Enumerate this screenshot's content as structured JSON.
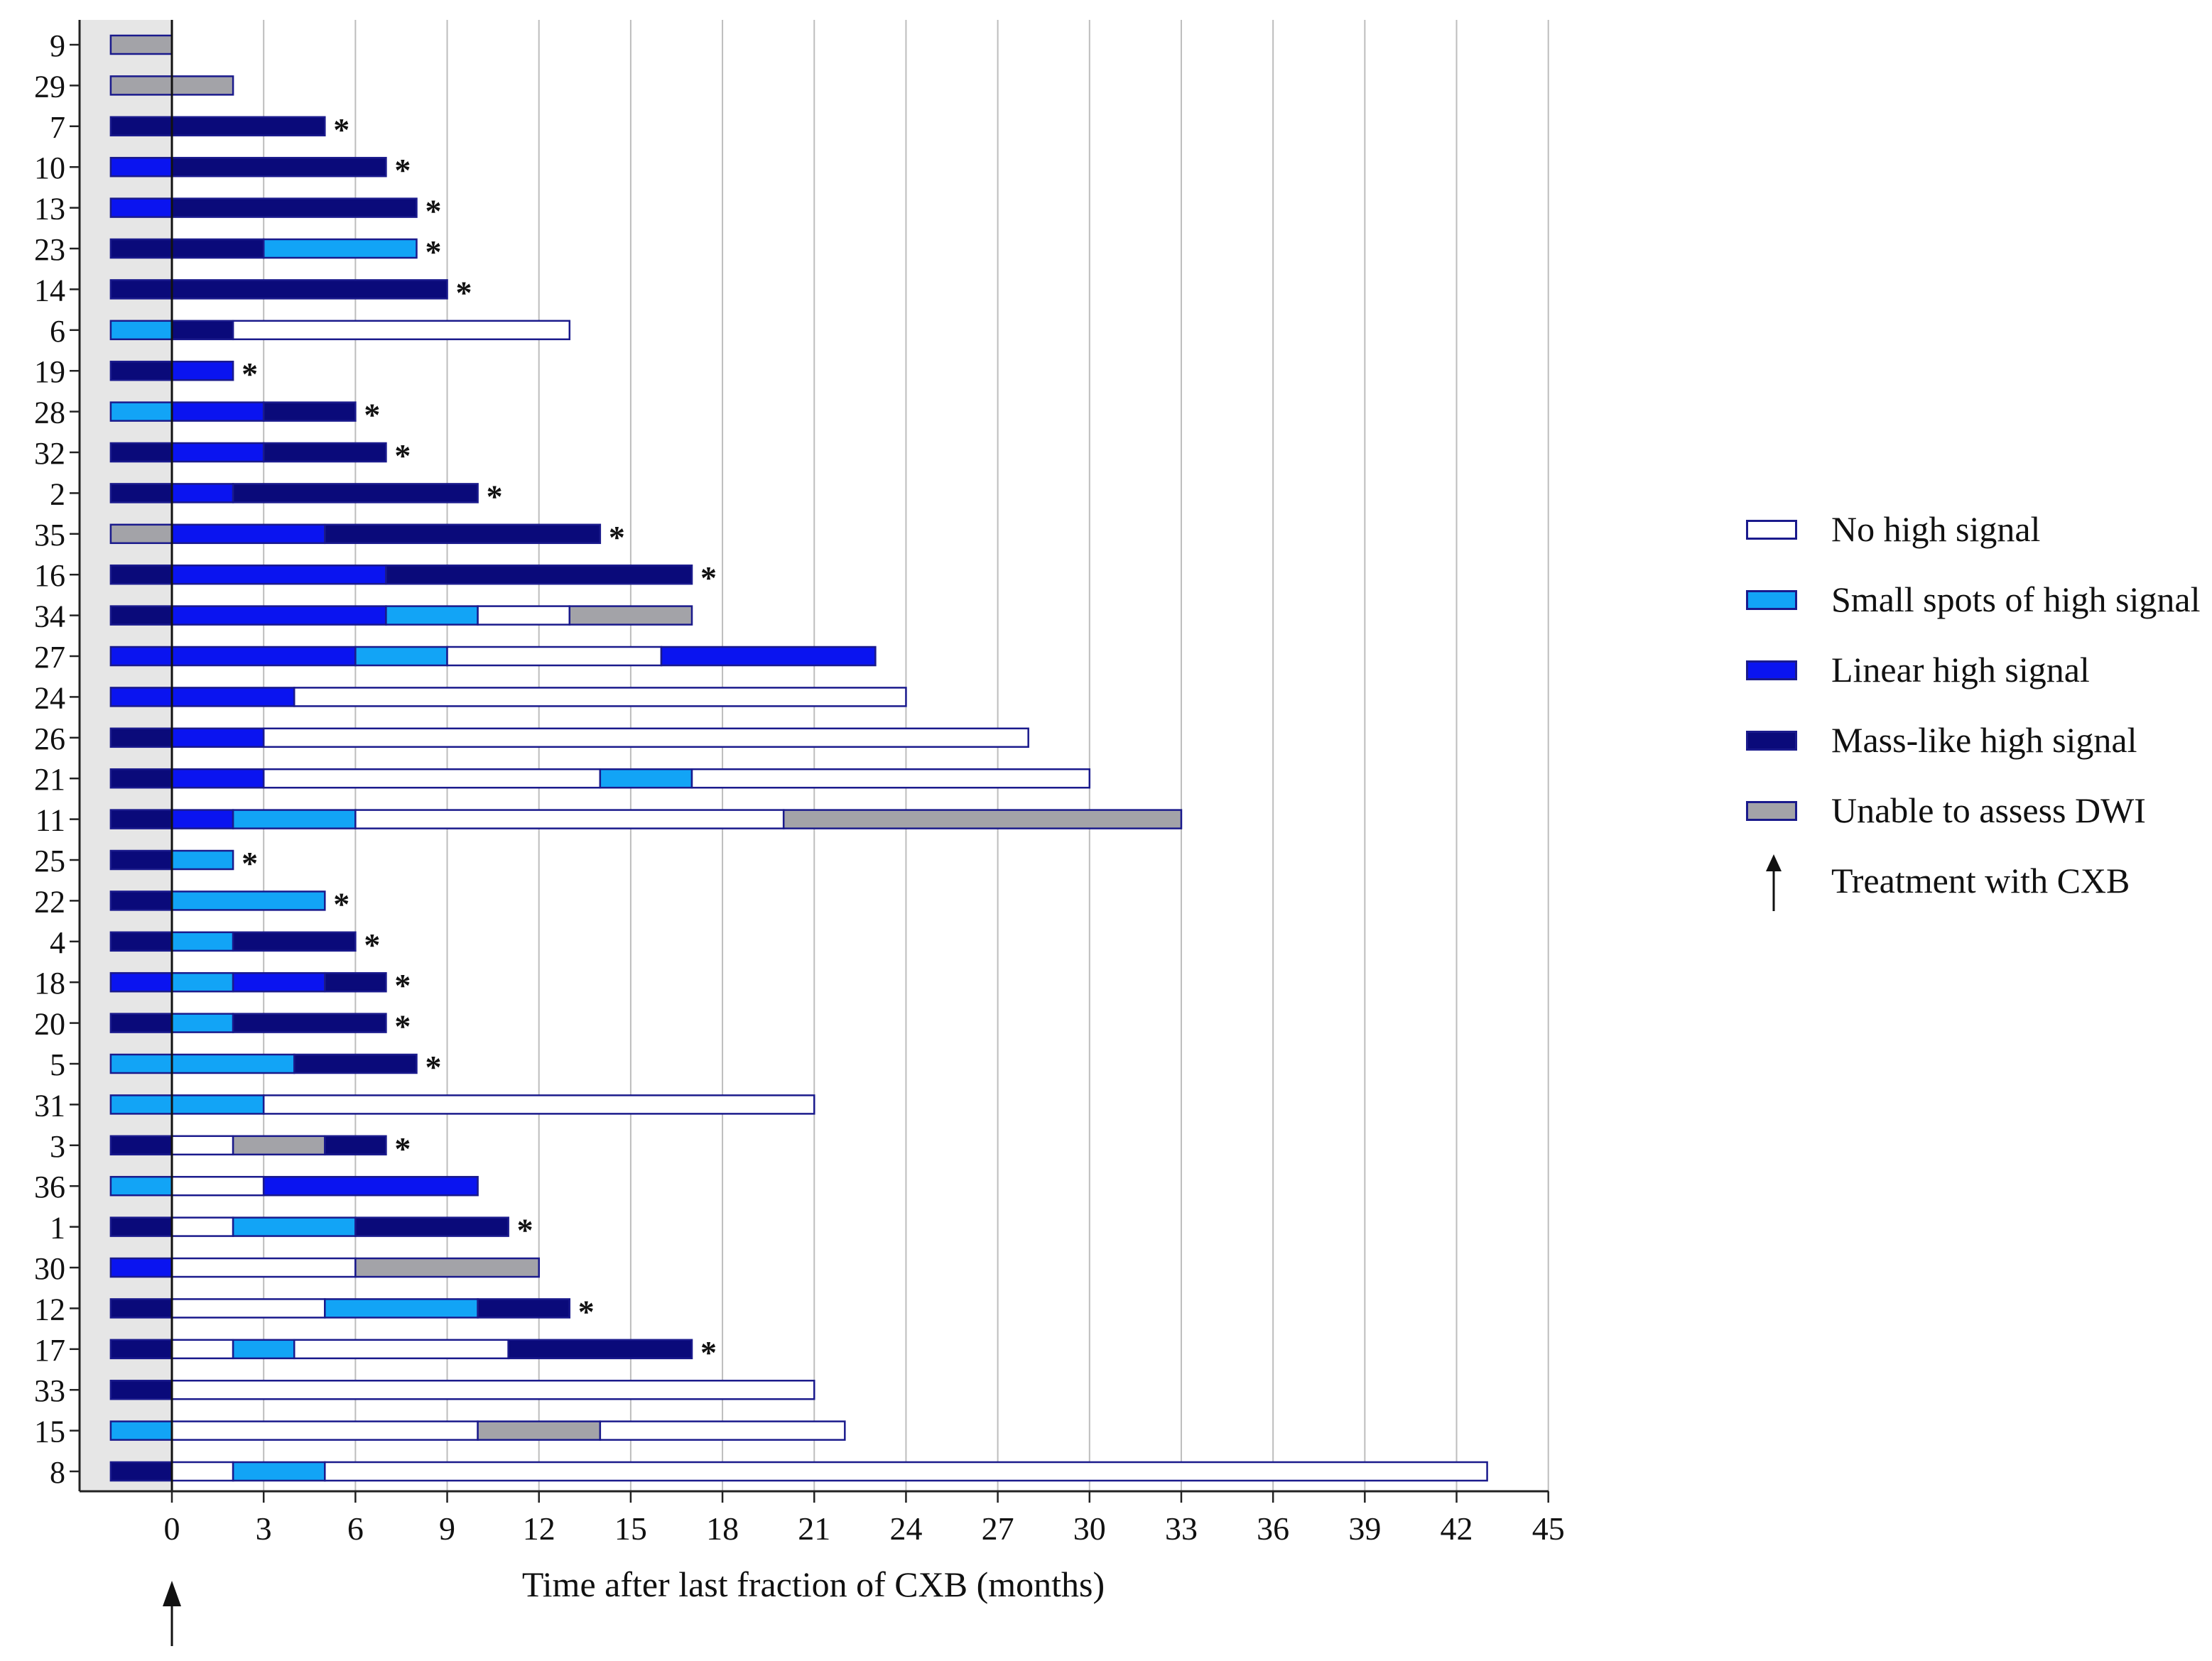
{
  "chart_data": {
    "type": "bar",
    "orientation": "horizontal-stacked-swimmer",
    "xlabel": "Time after last fraction of CXB (months)",
    "ylabel": "",
    "xlim": [
      -3,
      45
    ],
    "xticks": [
      0,
      3,
      6,
      9,
      12,
      15,
      18,
      21,
      24,
      27,
      30,
      33,
      36,
      39,
      42,
      45
    ],
    "grid": "vertical",
    "legend_position": "right",
    "colors": {
      "none": "#ffffff",
      "small": "#12a4f6",
      "linear": "#0a14f0",
      "mass": "#0a0a7a",
      "unable": "#a3a3a8",
      "outline": "#1a1a8c",
      "pretreatment_band": "#e6e6e6",
      "grid": "#bdbdbd"
    },
    "legend": [
      {
        "key": "none",
        "label": "No high signal"
      },
      {
        "key": "small",
        "label": "Small spots of high signal"
      },
      {
        "key": "linear",
        "label": "Linear high signal"
      },
      {
        "key": "mass",
        "label": "Mass-like high signal"
      },
      {
        "key": "unable",
        "label": "Unable to assess DWI"
      },
      {
        "key": "arrow",
        "label": "Treatment with CXB",
        "icon": "up-arrow-icon"
      }
    ],
    "star_marker": "*",
    "patients": [
      {
        "id": "9",
        "baseline": "unable",
        "segments": [],
        "star": false
      },
      {
        "id": "29",
        "baseline": "unable",
        "segments": [
          {
            "to": 2,
            "state": "unable"
          }
        ],
        "star": false
      },
      {
        "id": "7",
        "baseline": "mass",
        "segments": [
          {
            "to": 5,
            "state": "mass"
          }
        ],
        "star": true
      },
      {
        "id": "10",
        "baseline": "linear",
        "segments": [
          {
            "to": 7,
            "state": "mass"
          }
        ],
        "star": true
      },
      {
        "id": "13",
        "baseline": "linear",
        "segments": [
          {
            "to": 8,
            "state": "mass"
          }
        ],
        "star": true
      },
      {
        "id": "23",
        "baseline": "mass",
        "segments": [
          {
            "to": 3,
            "state": "mass"
          },
          {
            "to": 8,
            "state": "small"
          }
        ],
        "star": true
      },
      {
        "id": "14",
        "baseline": "mass",
        "segments": [
          {
            "to": 9,
            "state": "mass"
          }
        ],
        "star": true
      },
      {
        "id": "6",
        "baseline": "small",
        "segments": [
          {
            "to": 2,
            "state": "mass"
          },
          {
            "to": 13,
            "state": "none"
          }
        ],
        "star": false
      },
      {
        "id": "19",
        "baseline": "mass",
        "segments": [
          {
            "to": 2,
            "state": "linear"
          }
        ],
        "star": true
      },
      {
        "id": "28",
        "baseline": "small",
        "segments": [
          {
            "to": 3,
            "state": "linear"
          },
          {
            "to": 6,
            "state": "mass"
          }
        ],
        "star": true
      },
      {
        "id": "32",
        "baseline": "mass",
        "segments": [
          {
            "to": 3,
            "state": "linear"
          },
          {
            "to": 7,
            "state": "mass"
          }
        ],
        "star": true
      },
      {
        "id": "2",
        "baseline": "mass",
        "segments": [
          {
            "to": 2,
            "state": "linear"
          },
          {
            "to": 10,
            "state": "mass"
          }
        ],
        "star": true
      },
      {
        "id": "35",
        "baseline": "unable",
        "segments": [
          {
            "to": 5,
            "state": "linear"
          },
          {
            "to": 14,
            "state": "mass"
          }
        ],
        "star": true
      },
      {
        "id": "16",
        "baseline": "mass",
        "segments": [
          {
            "to": 7,
            "state": "linear"
          },
          {
            "to": 17,
            "state": "mass"
          }
        ],
        "star": true
      },
      {
        "id": "34",
        "baseline": "mass",
        "segments": [
          {
            "to": 7,
            "state": "linear"
          },
          {
            "to": 10,
            "state": "small"
          },
          {
            "to": 13,
            "state": "none"
          },
          {
            "to": 17,
            "state": "unable"
          }
        ],
        "star": false
      },
      {
        "id": "27",
        "baseline": "linear",
        "segments": [
          {
            "to": 6,
            "state": "linear"
          },
          {
            "to": 9,
            "state": "small"
          },
          {
            "to": 16,
            "state": "none"
          },
          {
            "to": 23,
            "state": "linear"
          }
        ],
        "star": false
      },
      {
        "id": "24",
        "baseline": "linear",
        "segments": [
          {
            "to": 4,
            "state": "linear"
          },
          {
            "to": 24,
            "state": "none"
          }
        ],
        "star": false
      },
      {
        "id": "26",
        "baseline": "mass",
        "segments": [
          {
            "to": 3,
            "state": "linear"
          },
          {
            "to": 28,
            "state": "none"
          }
        ],
        "star": false
      },
      {
        "id": "21",
        "baseline": "mass",
        "segments": [
          {
            "to": 3,
            "state": "linear"
          },
          {
            "to": 14,
            "state": "none"
          },
          {
            "to": 17,
            "state": "small"
          },
          {
            "to": 30,
            "state": "none"
          }
        ],
        "star": false
      },
      {
        "id": "11",
        "baseline": "mass",
        "segments": [
          {
            "to": 2,
            "state": "linear"
          },
          {
            "to": 6,
            "state": "small"
          },
          {
            "to": 20,
            "state": "none"
          },
          {
            "to": 33,
            "state": "unable"
          }
        ],
        "star": false
      },
      {
        "id": "25",
        "baseline": "mass",
        "segments": [
          {
            "to": 2,
            "state": "small"
          }
        ],
        "star": true
      },
      {
        "id": "22",
        "baseline": "mass",
        "segments": [
          {
            "to": 5,
            "state": "small"
          }
        ],
        "star": true
      },
      {
        "id": "4",
        "baseline": "mass",
        "segments": [
          {
            "to": 2,
            "state": "small"
          },
          {
            "to": 6,
            "state": "mass"
          }
        ],
        "star": true
      },
      {
        "id": "18",
        "baseline": "linear",
        "segments": [
          {
            "to": 2,
            "state": "small"
          },
          {
            "to": 5,
            "state": "linear"
          },
          {
            "to": 7,
            "state": "mass"
          }
        ],
        "star": true
      },
      {
        "id": "20",
        "baseline": "mass",
        "segments": [
          {
            "to": 2,
            "state": "small"
          },
          {
            "to": 7,
            "state": "mass"
          }
        ],
        "star": true
      },
      {
        "id": "5",
        "baseline": "small",
        "segments": [
          {
            "to": 4,
            "state": "small"
          },
          {
            "to": 8,
            "state": "mass"
          }
        ],
        "star": true
      },
      {
        "id": "31",
        "baseline": "small",
        "segments": [
          {
            "to": 3,
            "state": "small"
          },
          {
            "to": 21,
            "state": "none"
          }
        ],
        "star": false
      },
      {
        "id": "3",
        "baseline": "mass",
        "segments": [
          {
            "to": 2,
            "state": "none"
          },
          {
            "to": 5,
            "state": "unable"
          },
          {
            "to": 7,
            "state": "mass"
          }
        ],
        "star": true
      },
      {
        "id": "36",
        "baseline": "small",
        "segments": [
          {
            "to": 3,
            "state": "none"
          },
          {
            "to": 10,
            "state": "linear"
          }
        ],
        "star": false
      },
      {
        "id": "1",
        "baseline": "mass",
        "segments": [
          {
            "to": 2,
            "state": "none"
          },
          {
            "to": 6,
            "state": "small"
          },
          {
            "to": 11,
            "state": "mass"
          }
        ],
        "star": true
      },
      {
        "id": "30",
        "baseline": "linear",
        "segments": [
          {
            "to": 6,
            "state": "none"
          },
          {
            "to": 12,
            "state": "unable"
          }
        ],
        "star": false
      },
      {
        "id": "12",
        "baseline": "mass",
        "segments": [
          {
            "to": 5,
            "state": "none"
          },
          {
            "to": 10,
            "state": "small"
          },
          {
            "to": 13,
            "state": "mass"
          }
        ],
        "star": true
      },
      {
        "id": "17",
        "baseline": "mass",
        "segments": [
          {
            "to": 2,
            "state": "none"
          },
          {
            "to": 4,
            "state": "small"
          },
          {
            "to": 11,
            "state": "none"
          },
          {
            "to": 17,
            "state": "mass"
          }
        ],
        "star": true
      },
      {
        "id": "33",
        "baseline": "mass",
        "segments": [
          {
            "to": 21,
            "state": "none"
          }
        ],
        "star": false
      },
      {
        "id": "15",
        "baseline": "small",
        "segments": [
          {
            "to": 10,
            "state": "none"
          },
          {
            "to": 14,
            "state": "unable"
          },
          {
            "to": 22,
            "state": "none"
          }
        ],
        "star": false
      },
      {
        "id": "8",
        "baseline": "mass",
        "segments": [
          {
            "to": 2,
            "state": "none"
          },
          {
            "to": 5,
            "state": "small"
          },
          {
            "to": 43,
            "state": "none"
          }
        ],
        "star": false
      }
    ]
  }
}
